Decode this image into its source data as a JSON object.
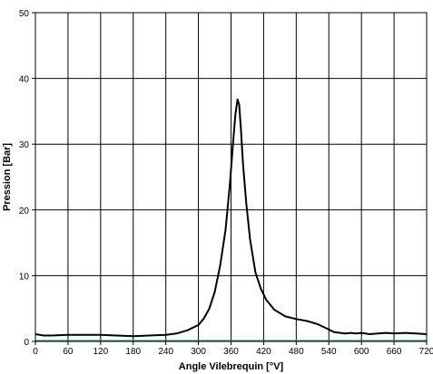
{
  "chart_data": {
    "type": "line",
    "title": "",
    "xlabel": "Angle Vilebrequin [°V]",
    "ylabel": "Pression [Bar]",
    "xlim": [
      0,
      720
    ],
    "ylim": [
      0,
      50
    ],
    "x_ticks": [
      "0",
      "60",
      "120",
      "180",
      "240",
      "300",
      "360",
      "420",
      "480",
      "540",
      "600",
      "660",
      "720"
    ],
    "y_ticks": [
      "0",
      "10",
      "20",
      "30",
      "40",
      "50"
    ],
    "grid": true,
    "line_color": "#000000",
    "baseline_color": "#2e8b57",
    "series": [
      {
        "values": [
          [
            0,
            1.1
          ],
          [
            15,
            0.9
          ],
          [
            30,
            0.9
          ],
          [
            60,
            1.0
          ],
          [
            90,
            1.0
          ],
          [
            120,
            1.0
          ],
          [
            150,
            0.9
          ],
          [
            180,
            0.8
          ],
          [
            210,
            0.9
          ],
          [
            240,
            1.0
          ],
          [
            260,
            1.2
          ],
          [
            280,
            1.7
          ],
          [
            300,
            2.5
          ],
          [
            310,
            3.5
          ],
          [
            320,
            5.0
          ],
          [
            330,
            7.5
          ],
          [
            340,
            11.5
          ],
          [
            350,
            17.0
          ],
          [
            358,
            24.0
          ],
          [
            364,
            30.5
          ],
          [
            368,
            34.5
          ],
          [
            372,
            36.8
          ],
          [
            375,
            36.0
          ],
          [
            378,
            32.5
          ],
          [
            382,
            27.0
          ],
          [
            388,
            21.0
          ],
          [
            395,
            15.5
          ],
          [
            405,
            10.5
          ],
          [
            415,
            8.0
          ],
          [
            425,
            6.3
          ],
          [
            440,
            4.8
          ],
          [
            460,
            3.8
          ],
          [
            480,
            3.4
          ],
          [
            500,
            3.1
          ],
          [
            520,
            2.6
          ],
          [
            540,
            1.8
          ],
          [
            550,
            1.4
          ],
          [
            570,
            1.2
          ],
          [
            580,
            1.3
          ],
          [
            590,
            1.2
          ],
          [
            600,
            1.3
          ],
          [
            615,
            1.1
          ],
          [
            630,
            1.2
          ],
          [
            645,
            1.3
          ],
          [
            660,
            1.2
          ],
          [
            680,
            1.3
          ],
          [
            700,
            1.2
          ],
          [
            720,
            1.1
          ]
        ]
      }
    ]
  }
}
